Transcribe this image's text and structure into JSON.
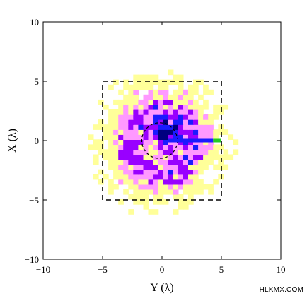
{
  "chart_data": {
    "type": "heatmap",
    "title": "",
    "xlabel": "Y (λ)",
    "ylabel": "X (λ)",
    "xlim": [
      -10,
      10
    ],
    "ylim": [
      -10,
      10
    ],
    "x_ticks": [
      -10,
      -5,
      0,
      5,
      10
    ],
    "y_ticks": [
      -10,
      -5,
      0,
      5,
      10
    ],
    "x_tick_labels": [
      "−10",
      "−5",
      "0",
      "5",
      "10"
    ],
    "y_tick_labels": [
      "−10",
      "−5",
      "0",
      "5",
      "10"
    ],
    "grid": false,
    "colormap": [
      "#ffffff",
      "#ffff99",
      "#ff99ff",
      "#9900ff",
      "#1a1aff",
      "#000080"
    ],
    "intensity_field": {
      "ring_center": [
        -0.3,
        -0.4
      ],
      "ring_radius": 2.8,
      "ring_width": 1.6,
      "core_center": [
        0.1,
        0.3
      ],
      "core_radius": 1.2,
      "extent_radius": 5.8
    },
    "overlays": [
      {
        "name": "square",
        "style": "dashed",
        "color": "#000000",
        "x": [
          -5,
          5
        ],
        "y": [
          -5,
          5
        ]
      },
      {
        "name": "circle",
        "style": "dashed",
        "color": "#000000",
        "center": [
          -0.2,
          0
        ],
        "radius": 1.5
      },
      {
        "name": "blue-line",
        "color": "#1a1aff",
        "x": [
          0.5,
          4.3
        ],
        "y": [
          0,
          0
        ]
      },
      {
        "name": "green-marker",
        "color": "#22cc22",
        "x": [
          4.3,
          5.0
        ],
        "y": [
          0,
          0
        ]
      }
    ]
  },
  "watermark": "HLKMX.COM"
}
